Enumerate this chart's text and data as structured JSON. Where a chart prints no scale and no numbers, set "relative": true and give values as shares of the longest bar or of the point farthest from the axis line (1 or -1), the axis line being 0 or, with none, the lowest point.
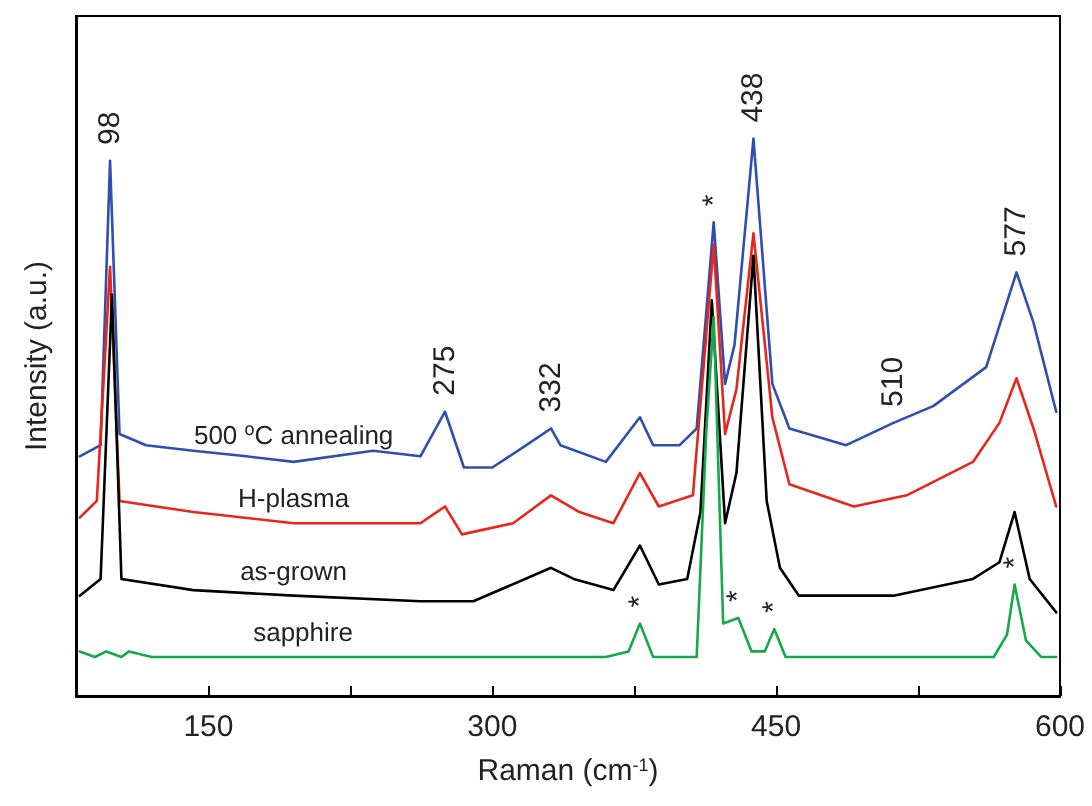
{
  "chart_data": {
    "type": "line",
    "relative": true,
    "xlabel": "Raman (cm$^{-1}$)",
    "ylabel": "Intensity (a.u.)",
    "xlim": [
      80,
      600
    ],
    "xticks": [
      150,
      {
        "value": 225,
        "label": null
      },
      300,
      {
        "value": 375,
        "label": null
      },
      450,
      {
        "value": 525,
        "label": null
      },
      600
    ],
    "tick_labels": "x",
    "grid": false,
    "legend": false,
    "marker": "none",
    "line_style": "solid",
    "series": [
      {
        "name": "500 $^{o}$C annealing",
        "color": "#2f4fb0",
        "x": [
          82,
          93,
          98,
          103,
          117,
          142,
          170,
          195,
          237,
          262,
          275,
          285,
          300,
          318,
          331,
          336,
          360,
          378,
          385,
          399,
          408,
          417,
          423,
          428,
          438,
          448,
          457,
          487,
          512,
          533,
          561,
          577,
          586,
          598
        ],
        "values": [
          0.43,
          0.45,
          0.96,
          0.47,
          0.45,
          0.44,
          0.43,
          0.42,
          0.44,
          0.43,
          0.51,
          0.41,
          0.41,
          0.45,
          0.48,
          0.45,
          0.42,
          0.5,
          0.45,
          0.45,
          0.48,
          0.85,
          0.56,
          0.63,
          1.0,
          0.56,
          0.48,
          0.45,
          0.49,
          0.52,
          0.59,
          0.76,
          0.67,
          0.51
        ]
      },
      {
        "name": "H-plasma",
        "color": "#e8261c",
        "x": [
          82,
          91,
          98,
          103,
          142,
          195,
          262,
          275,
          284,
          311,
          331,
          346,
          364,
          378,
          388,
          406,
          417,
          423,
          429,
          438,
          448,
          457,
          491,
          519,
          554,
          568,
          577,
          586,
          598
        ],
        "values": [
          0.32,
          0.35,
          0.77,
          0.35,
          0.33,
          0.31,
          0.31,
          0.34,
          0.29,
          0.31,
          0.36,
          0.33,
          0.31,
          0.4,
          0.34,
          0.36,
          0.81,
          0.47,
          0.55,
          0.83,
          0.5,
          0.38,
          0.34,
          0.36,
          0.42,
          0.49,
          0.57,
          0.48,
          0.34
        ]
      },
      {
        "name": "as-grown",
        "color": "#000000",
        "x": [
          82,
          93,
          99,
          104,
          142,
          195,
          262,
          290,
          331,
          343,
          364,
          378,
          388,
          403,
          410,
          416,
          423,
          429,
          438,
          445,
          452,
          462,
          512,
          554,
          568,
          576,
          584,
          598
        ],
        "values": [
          0.18,
          0.21,
          0.72,
          0.21,
          0.19,
          0.18,
          0.17,
          0.17,
          0.23,
          0.21,
          0.19,
          0.27,
          0.2,
          0.21,
          0.33,
          0.71,
          0.31,
          0.4,
          0.79,
          0.35,
          0.23,
          0.18,
          0.18,
          0.21,
          0.24,
          0.33,
          0.21,
          0.15
        ]
      },
      {
        "name": "sapphire",
        "color": "#17a84a",
        "x": [
          82,
          90,
          96,
          104,
          108,
          120,
          200,
          300,
          360,
          372,
          378,
          385,
          408,
          413,
          417,
          422,
          430,
          437,
          444,
          449,
          455,
          510,
          565,
          572,
          576,
          582,
          590,
          598
        ],
        "values": [
          0.08,
          0.07,
          0.08,
          0.07,
          0.08,
          0.07,
          0.07,
          0.07,
          0.07,
          0.08,
          0.13,
          0.07,
          0.07,
          0.47,
          0.68,
          0.13,
          0.14,
          0.08,
          0.08,
          0.12,
          0.07,
          0.07,
          0.07,
          0.11,
          0.2,
          0.1,
          0.07,
          0.07
        ]
      }
    ],
    "annotations": [
      {
        "text": "98",
        "x": 98,
        "y": 0.96
      },
      {
        "text": "275",
        "x": 275,
        "y": 0.51
      },
      {
        "text": "332",
        "x": 331,
        "y": 0.48
      },
      {
        "text": "438",
        "x": 438,
        "y": 1.0
      },
      {
        "text": "510",
        "x": 512,
        "y": 0.49
      },
      {
        "text": "577",
        "x": 577,
        "y": 0.76
      },
      {
        "text": "*",
        "x": 417,
        "y": 0.85
      },
      {
        "text": "*",
        "x": 378,
        "y": 0.13
      },
      {
        "text": "*",
        "x": 430,
        "y": 0.14
      },
      {
        "text": "*",
        "x": 449,
        "y": 0.12
      },
      {
        "text": "*",
        "x": 576,
        "y": 0.2
      }
    ]
  }
}
